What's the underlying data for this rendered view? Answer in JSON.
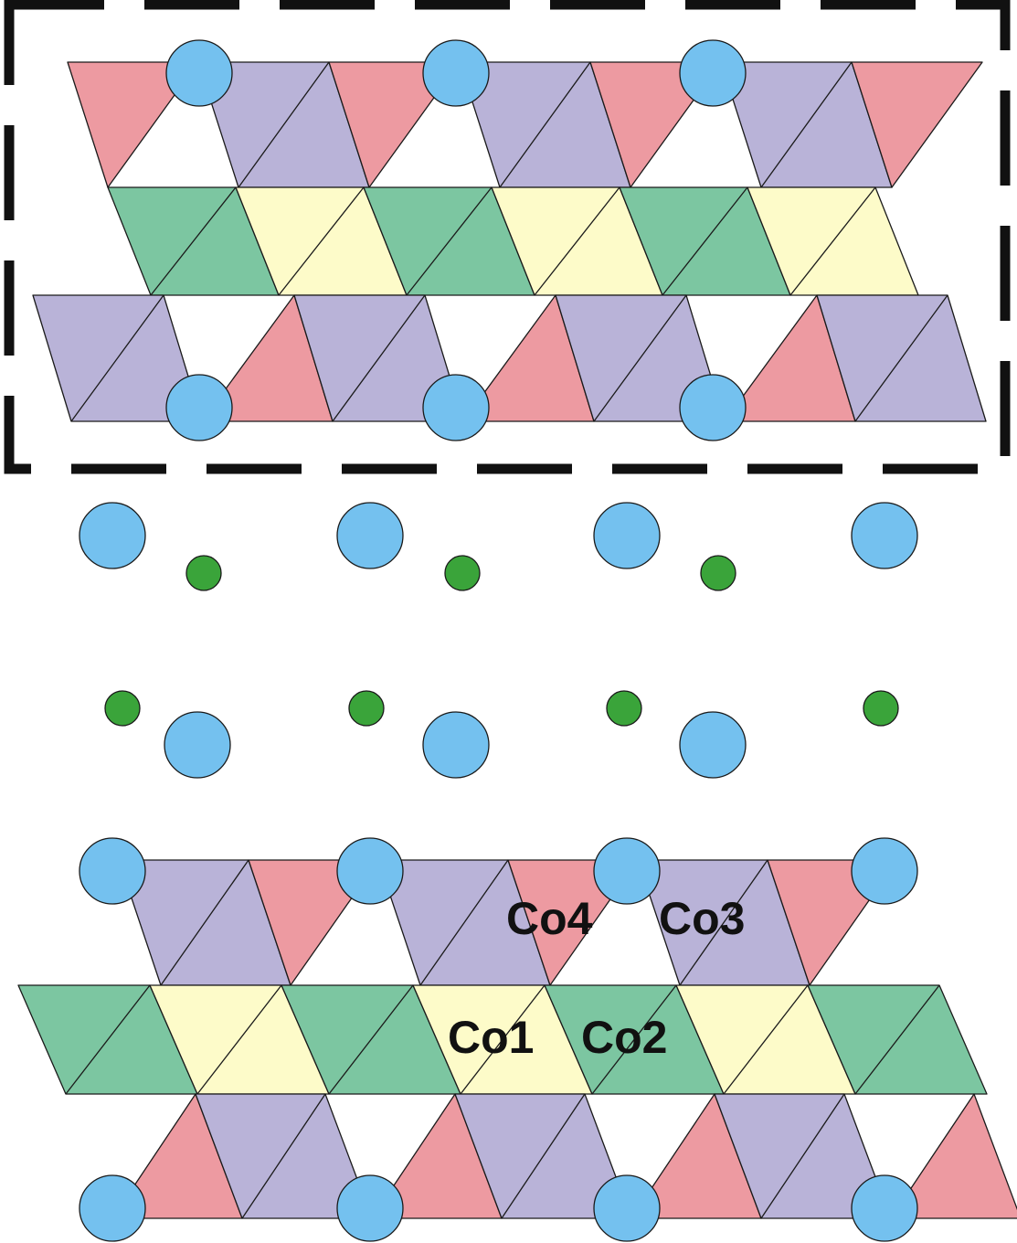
{
  "colors": {
    "background": "#ffffff",
    "outline": "#1a1a1a",
    "frame": "#111111",
    "green_octahedra": "#7cc6a1",
    "yellow_octahedra": "#fdfbc9",
    "purple_octahedra": "#b9b3d8",
    "pink_tetrahedra": "#ed9aa1",
    "large_atom": "#74c1ef",
    "small_atom": "#3aa43a"
  },
  "legend_icons": {
    "large_atom": "large-blue-atom-icon",
    "small_atom": "small-green-atom-icon"
  },
  "labels": {
    "co4": "Co4",
    "co3": "Co3",
    "co1": "Co1",
    "co2": "Co2"
  }
}
